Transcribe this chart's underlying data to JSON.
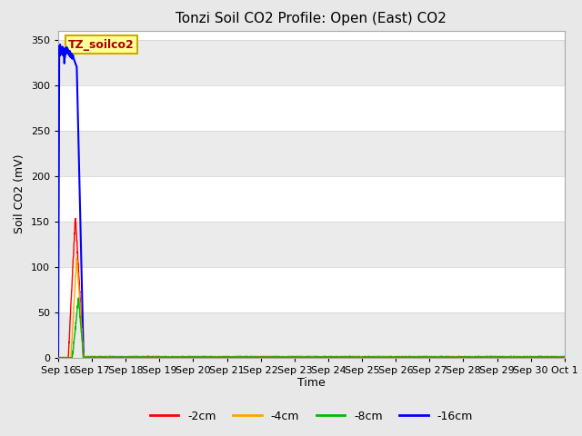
{
  "title": "Tonzi Soil CO2 Profile: Open (East) CO2",
  "xlabel": "Time",
  "ylabel": "Soil CO2 (mV)",
  "ylim": [
    0,
    360
  ],
  "yticks": [
    0,
    50,
    100,
    150,
    200,
    250,
    300,
    350
  ],
  "fig_bg": "#e8e8e8",
  "plot_bg": "#ffffff",
  "band_color": "#ebebeb",
  "grid_color": "#d0d0d0",
  "series": {
    "-2cm": {
      "color": "#ff0000"
    },
    "-4cm": {
      "color": "#ffa500"
    },
    "-8cm": {
      "color": "#00bb00"
    },
    "-16cm": {
      "color": "#0000ff"
    }
  },
  "xtick_labels": [
    "Sep 16",
    "Sep 17",
    "Sep 18",
    "Sep 19",
    "Sep 20",
    "Sep 21",
    "Sep 22",
    "Sep 23",
    "Sep 24",
    "Sep 25",
    "Sep 26",
    "Sep 27",
    "Sep 28",
    "Sep 29",
    "Sep 30",
    "Oct 1"
  ],
  "watermark_text": "TZ_soilco2",
  "watermark_color": "#aa0000",
  "watermark_bg": "#ffff99",
  "watermark_edge": "#ccaa00",
  "total_days": 15.0,
  "legend_labels": [
    "-2cm",
    "-4cm",
    "-8cm",
    "-16cm"
  ]
}
